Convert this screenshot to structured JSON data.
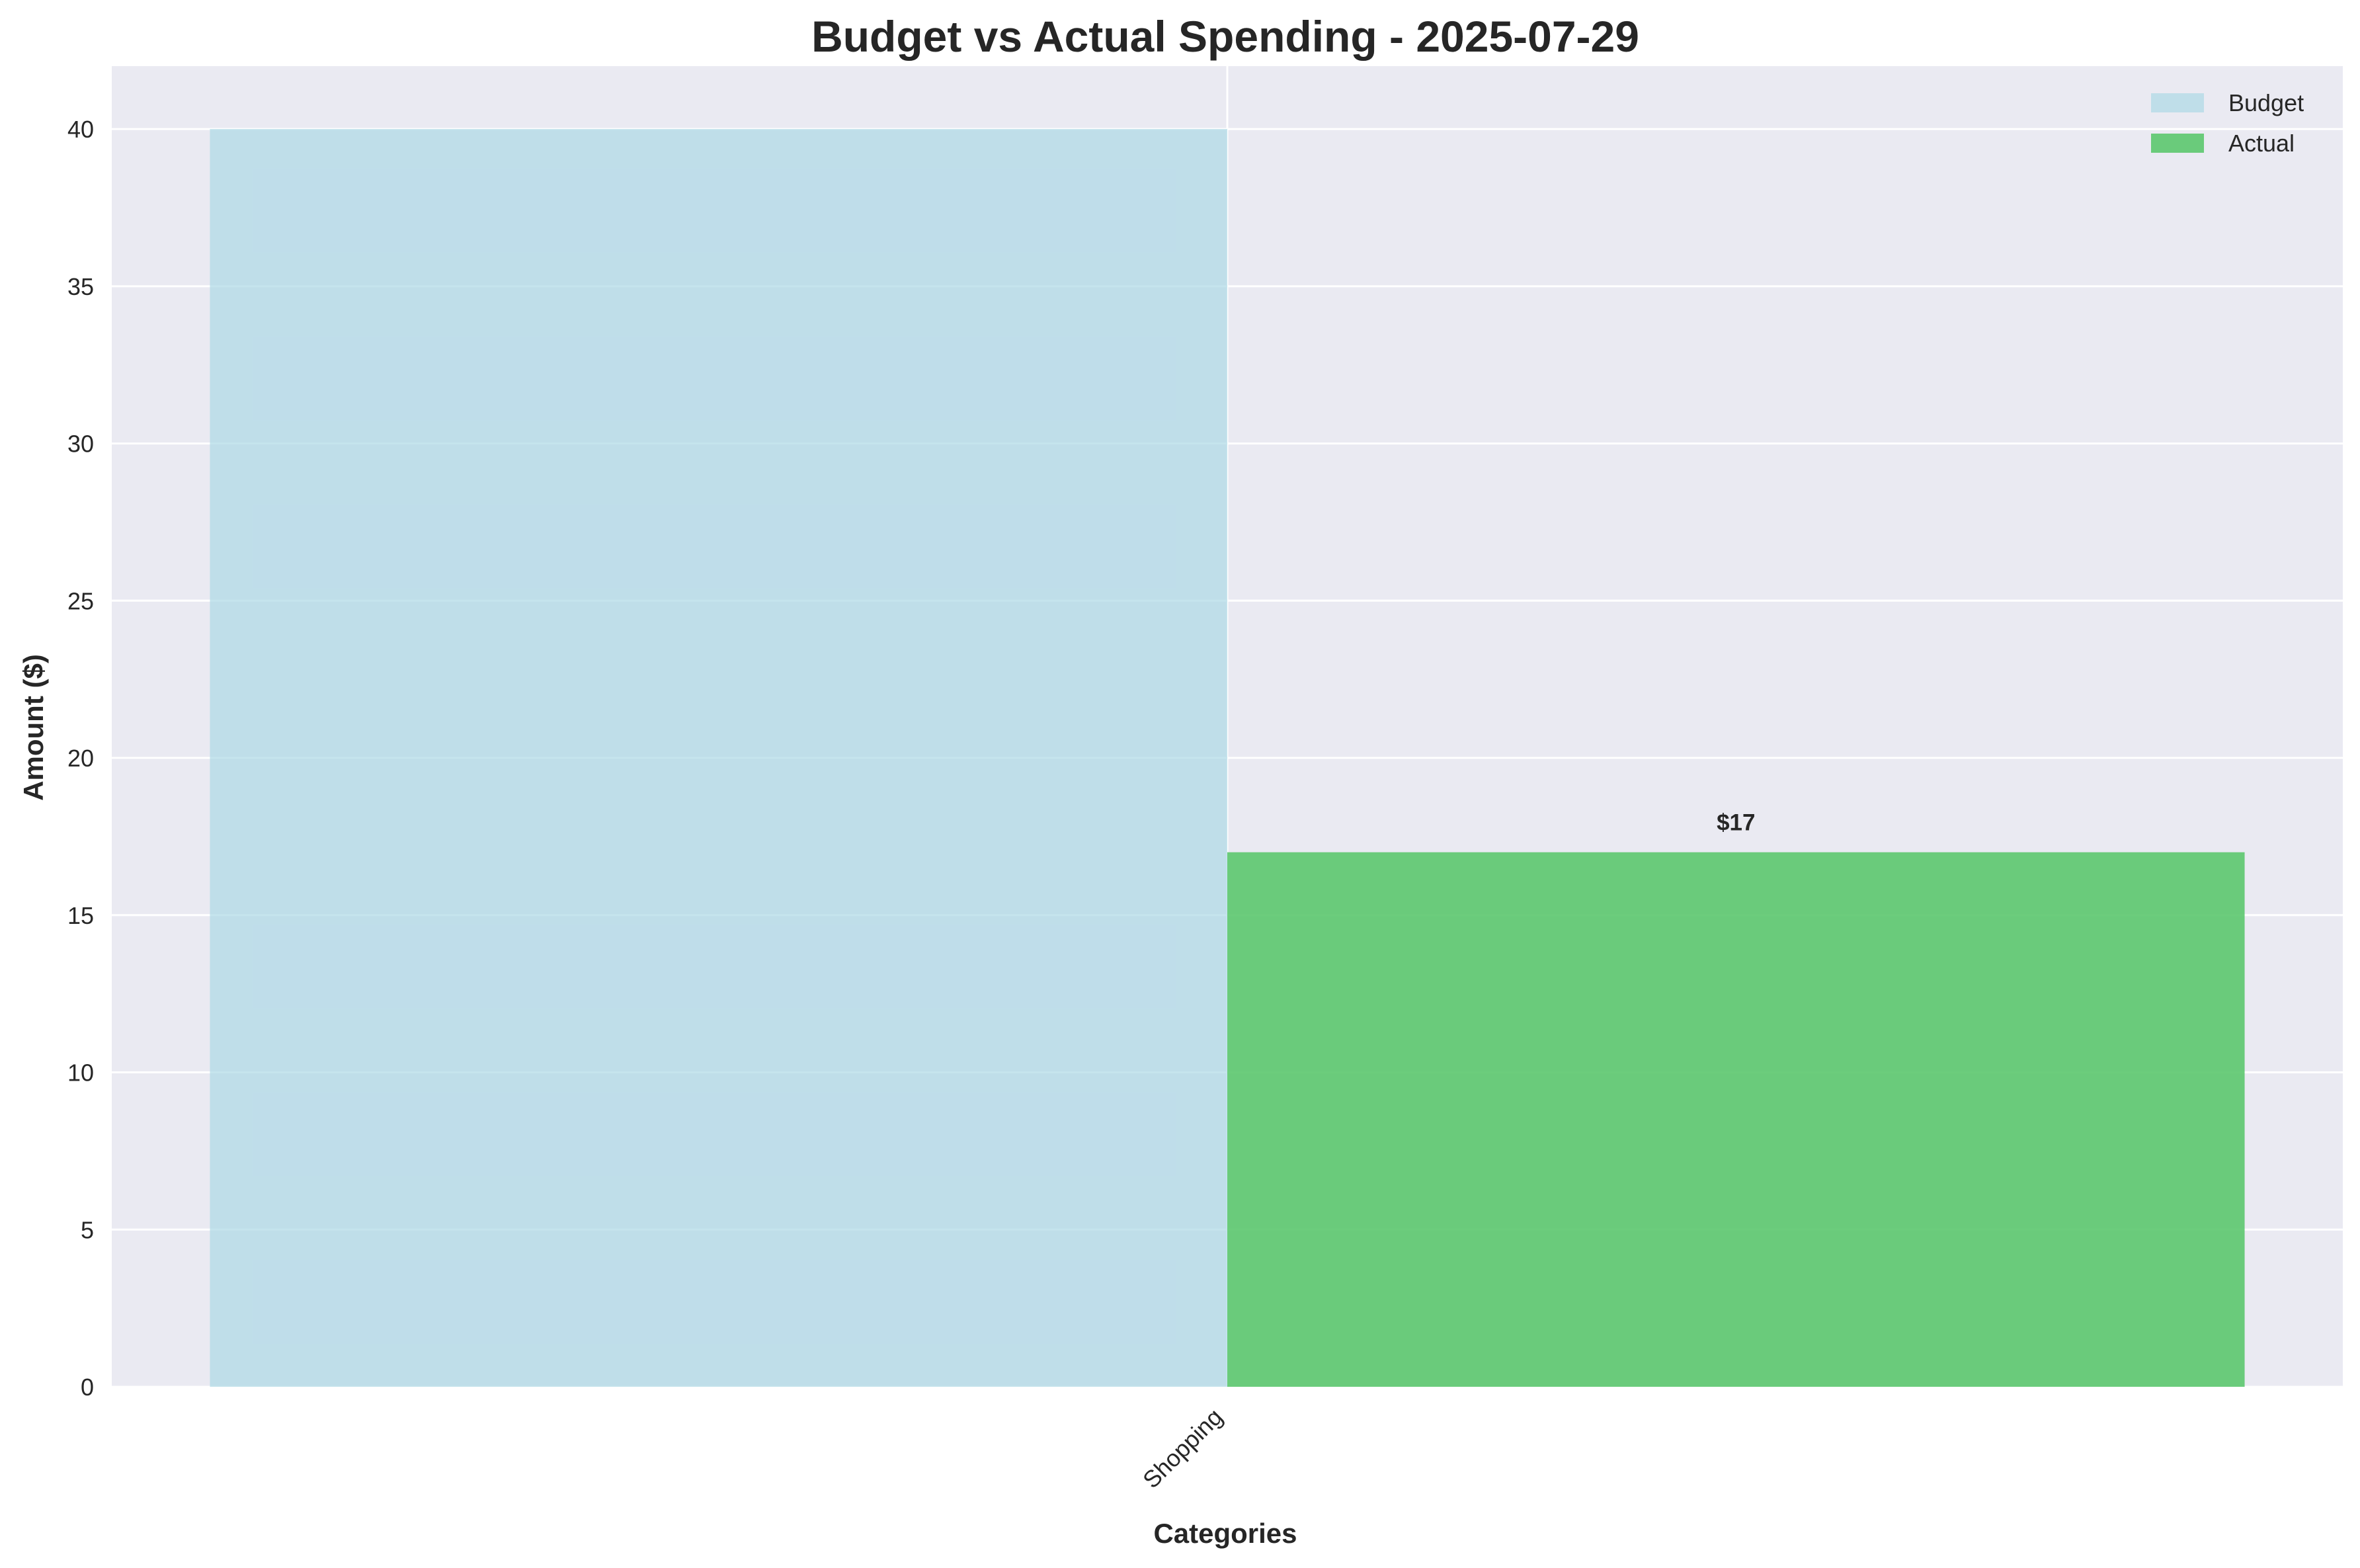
{
  "chart_data": {
    "type": "bar",
    "title": "Budget vs Actual Spending - 2025-07-29",
    "xlabel": "Categories",
    "ylabel": "Amount ($)",
    "categories": [
      "Shopping"
    ],
    "series": [
      {
        "name": "Budget",
        "values": [
          40
        ],
        "color": "#add8e6",
        "opacity": 0.7
      },
      {
        "name": "Actual",
        "values": [
          17
        ],
        "color": "#5cc86e",
        "opacity": 0.9
      }
    ],
    "data_labels": [
      {
        "series": "Actual",
        "category": "Shopping",
        "text": "$17"
      }
    ],
    "ylim": [
      0,
      42
    ],
    "yticks": [
      0,
      5,
      10,
      15,
      20,
      25,
      30,
      35,
      40
    ],
    "grid": true,
    "legend_position": "top-right",
    "background_color": "#eaeaf2",
    "grid_color": "#ffffff"
  }
}
